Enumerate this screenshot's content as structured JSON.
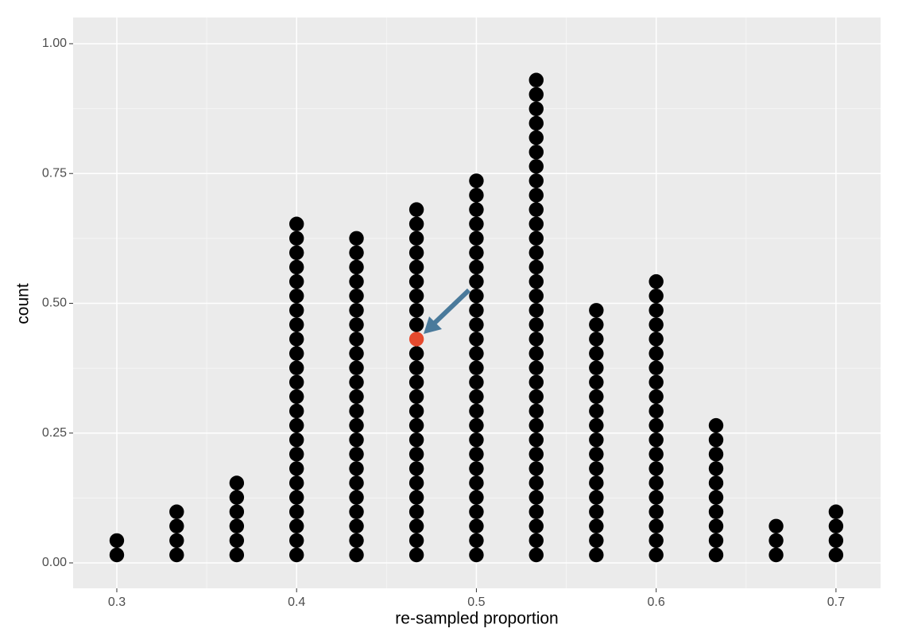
{
  "chart_data": {
    "type": "dotplot",
    "x_label": "re-sampled proportion",
    "y_label": "count",
    "x": [
      0.3,
      0.3333,
      0.3667,
      0.4,
      0.4333,
      0.4667,
      0.5,
      0.5333,
      0.5667,
      0.6,
      0.6333,
      0.6667,
      0.7
    ],
    "counts": [
      2,
      4,
      6,
      24,
      23,
      25,
      27,
      34,
      18,
      20,
      10,
      3,
      4
    ],
    "color": "#000000",
    "highlight": {
      "stack": 5,
      "position": 16,
      "color": "#e64a2e"
    },
    "xlim": [
      0.2757,
      0.7248
    ],
    "xticks": [
      0.3,
      0.4,
      0.5,
      0.6,
      0.7
    ],
    "ylim": [
      -0.049,
      1.0505
    ],
    "yticks": [
      {
        "value": 0,
        "label": "0.00"
      },
      0.25,
      {
        "value": 0.5,
        "label": "0.50"
      },
      0.75,
      {
        "value": 1,
        "label": "1.00"
      }
    ],
    "grid": true
  }
}
